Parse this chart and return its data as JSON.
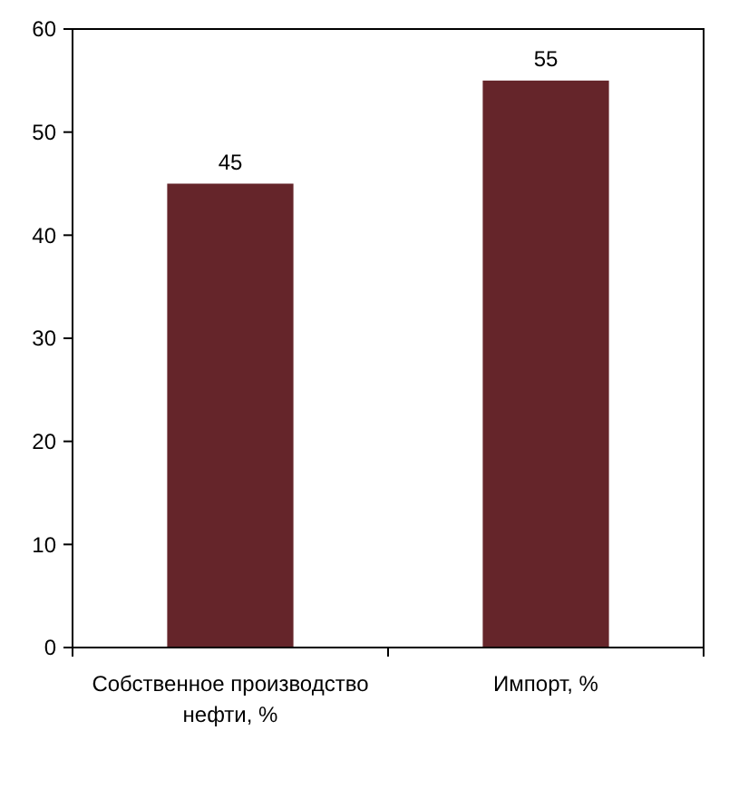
{
  "chart_data": {
    "type": "bar",
    "categories": [
      "Собственное производство нефти, %",
      "Импорт, %"
    ],
    "values": [
      45,
      55
    ],
    "color": "#65252a",
    "ylim": [
      0,
      60
    ],
    "yticks": [
      0,
      10,
      20,
      30,
      40,
      50,
      60
    ],
    "data_labels": true,
    "grid": false
  }
}
